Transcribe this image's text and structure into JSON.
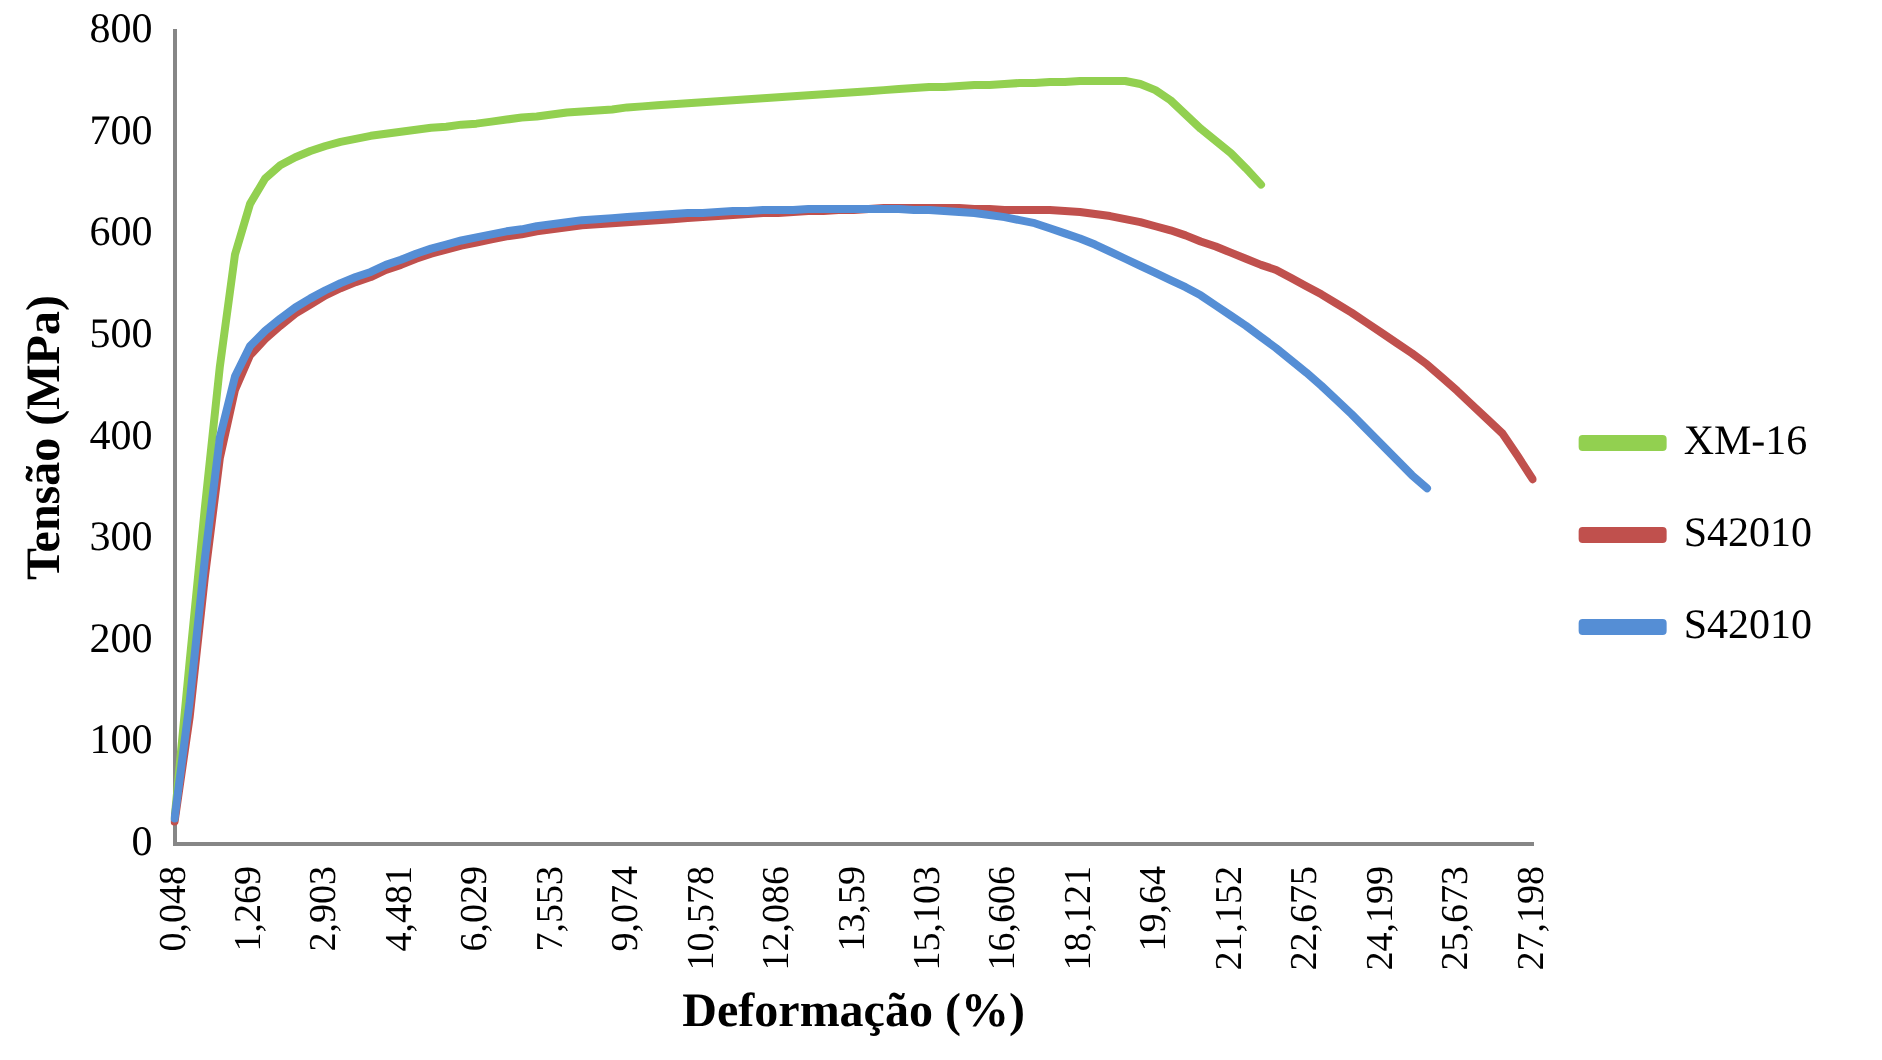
{
  "chart_data": {
    "type": "line",
    "xlabel": "Deformação (%)",
    "ylabel": "Tensão (MPa)",
    "categories": [
      "0,048",
      null,
      null,
      null,
      null,
      "1,269",
      null,
      null,
      null,
      null,
      "2,903",
      null,
      null,
      null,
      null,
      "4,481",
      null,
      null,
      null,
      null,
      "6,029",
      null,
      null,
      null,
      null,
      "7,553",
      null,
      null,
      null,
      null,
      "9,074",
      null,
      null,
      null,
      null,
      "10,578",
      null,
      null,
      null,
      null,
      "12,086",
      null,
      null,
      null,
      null,
      "13,59",
      null,
      null,
      null,
      null,
      "15,103",
      null,
      null,
      null,
      null,
      "16,606",
      null,
      null,
      null,
      null,
      "18,121",
      null,
      null,
      null,
      null,
      "19,64",
      null,
      null,
      null,
      null,
      "21,152",
      null,
      null,
      null,
      null,
      "22,675",
      null,
      null,
      null,
      null,
      "24,199",
      null,
      null,
      null,
      null,
      "25,673",
      null,
      null,
      null,
      null,
      "27,198"
    ],
    "series": [
      {
        "name": "XM-16",
        "color": "#92d050",
        "values": [
          25,
          180,
          330,
          470,
          580,
          630,
          655,
          668,
          676,
          682,
          687,
          691,
          694,
          697,
          699,
          701,
          703,
          705,
          706,
          708,
          709,
          711,
          713,
          715,
          716,
          718,
          720,
          721,
          722,
          723,
          725,
          726,
          727,
          728,
          729,
          730,
          731,
          732,
          733,
          734,
          735,
          736,
          737,
          738,
          739,
          740,
          741,
          742,
          743,
          744,
          745,
          745,
          746,
          747,
          747,
          748,
          749,
          749,
          750,
          750,
          751,
          751,
          751,
          751,
          748,
          742,
          732,
          718,
          704,
          692,
          680,
          665,
          649,
          null,
          null,
          null,
          null,
          null,
          null,
          null,
          null,
          null,
          null,
          null,
          null,
          null,
          null,
          null,
          null,
          null,
          null
        ]
      },
      {
        "name": "S42010",
        "color": "#c0504d",
        "values": [
          22,
          125,
          262,
          380,
          447,
          481,
          497,
          510,
          522,
          531,
          540,
          547,
          553,
          558,
          565,
          570,
          576,
          581,
          585,
          589,
          592,
          595,
          598,
          600,
          603,
          605,
          607,
          609,
          610,
          611,
          612,
          613,
          614,
          615,
          616,
          617,
          618,
          619,
          620,
          621,
          621,
          622,
          623,
          623,
          624,
          624,
          625,
          626,
          626,
          626,
          626,
          626,
          626,
          625,
          625,
          624,
          624,
          624,
          624,
          623,
          622,
          620,
          618,
          615,
          612,
          608,
          604,
          599,
          593,
          588,
          582,
          576,
          570,
          565,
          557,
          549,
          541,
          532,
          523,
          513,
          503,
          493,
          483,
          472,
          459,
          446,
          432,
          418,
          404,
          382,
          359
        ]
      },
      {
        "name": "S42010",
        "color": "#558ed5",
        "values": [
          25,
          140,
          280,
          400,
          460,
          490,
          505,
          517,
          528,
          537,
          545,
          552,
          558,
          563,
          570,
          575,
          581,
          586,
          590,
          594,
          597,
          600,
          603,
          605,
          608,
          610,
          612,
          614,
          615,
          616,
          617,
          618,
          619,
          620,
          621,
          621,
          622,
          623,
          623,
          624,
          624,
          624,
          625,
          625,
          625,
          625,
          625,
          625,
          625,
          624,
          624,
          623,
          622,
          621,
          619,
          617,
          614,
          611,
          606,
          601,
          596,
          590,
          583,
          576,
          569,
          562,
          555,
          548,
          540,
          530,
          520,
          510,
          499,
          488,
          476,
          464,
          451,
          437,
          423,
          408,
          393,
          378,
          363,
          350,
          null,
          null,
          null,
          null,
          null,
          null,
          null
        ]
      }
    ],
    "ylim": [
      0,
      800
    ],
    "yticks": [
      0,
      100,
      200,
      300,
      400,
      500,
      600,
      700,
      800
    ],
    "grid": false,
    "legend": "right",
    "marker": "none",
    "line_style": "solid"
  }
}
